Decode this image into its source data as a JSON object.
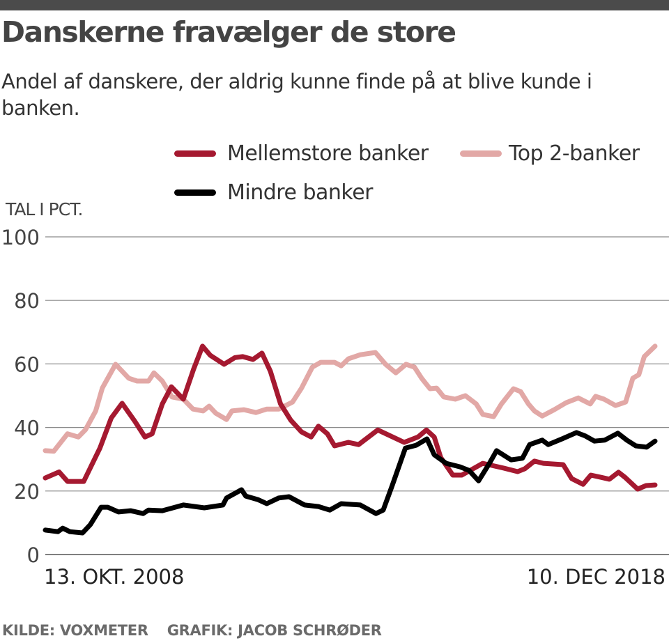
{
  "header": {
    "title": "Danskerne fravælger de store",
    "subtitle": "Andel af danskere, der aldrig kunne finde på at blive kunde i banken."
  },
  "footer": {
    "source": "KILDE: VOXMETER",
    "credit": "GRAFIK: JACOB SCHRØDER"
  },
  "chart_data": {
    "type": "line",
    "title": "Danskerne fravælger de store",
    "subtitle": "Andel af danskere, der aldrig kunne finde på at blive kunde i banken.",
    "ylabel": "TAL I PCT.",
    "xlabel": "",
    "ylim": [
      0,
      100
    ],
    "yticks": [
      "0",
      "20",
      "40",
      "60",
      "80",
      "100"
    ],
    "ytick_values": [
      0,
      20,
      40,
      60,
      80,
      100
    ],
    "xlim": [
      2008.78,
      2018.94
    ],
    "xtick_labels": [
      "13. OKT. 2008",
      "10. DEC 2018"
    ],
    "grid": true,
    "legend_placement": "top",
    "series": [
      {
        "name": "Mellemstore banker",
        "color": "#a51930",
        "x": [
          2008.78,
          2009.01,
          2009.15,
          2009.42,
          2009.69,
          2009.88,
          2010.06,
          2010.27,
          2010.44,
          2010.56,
          2010.73,
          2010.88,
          2011.08,
          2011.25,
          2011.4,
          2011.53,
          2011.76,
          2011.94,
          2012.07,
          2012.24,
          2012.39,
          2012.53,
          2012.7,
          2012.87,
          2013.05,
          2013.21,
          2013.33,
          2013.48,
          2013.6,
          2013.83,
          2014.0,
          2014.32,
          2014.76,
          2014.99,
          2015.13,
          2015.26,
          2015.37,
          2015.57,
          2015.72,
          2016.07,
          2016.42,
          2016.65,
          2016.77,
          2016.93,
          2017.08,
          2017.41,
          2017.55,
          2017.74,
          2017.87,
          2018.04,
          2018.18,
          2018.33,
          2018.44,
          2018.65,
          2018.79,
          2018.94
        ],
        "y": [
          24.1,
          26,
          23,
          23,
          33.5,
          43,
          47.6,
          42,
          37,
          38,
          47.4,
          52.8,
          48.9,
          58.3,
          65.6,
          62.7,
          59.9,
          62,
          62.3,
          61.4,
          63.4,
          57.7,
          47.4,
          42.3,
          38.6,
          37,
          40.4,
          38,
          34.2,
          35.3,
          34.6,
          39.2,
          35.3,
          37,
          39.2,
          37,
          30.5,
          25,
          25,
          28.7,
          27.2,
          26.1,
          27,
          29.4,
          28.7,
          28.3,
          23.9,
          22.1,
          25,
          24.3,
          23.7,
          25.9,
          24.3,
          20.6,
          21.7,
          21.9
        ]
      },
      {
        "name": "Top 2-banker",
        "color": "#e2a8a6",
        "x": [
          2008.78,
          2008.92,
          2009.15,
          2009.33,
          2009.45,
          2009.62,
          2009.73,
          2009.95,
          2010.17,
          2010.31,
          2010.5,
          2010.59,
          2010.73,
          2010.89,
          2011.08,
          2011.24,
          2011.41,
          2011.51,
          2011.62,
          2011.8,
          2011.89,
          2012.09,
          2012.29,
          2012.47,
          2012.67,
          2012.9,
          2013.05,
          2013.23,
          2013.37,
          2013.6,
          2013.71,
          2013.83,
          2014.03,
          2014.28,
          2014.45,
          2014.62,
          2014.79,
          2014.93,
          2015.05,
          2015.19,
          2015.3,
          2015.42,
          2015.61,
          2015.78,
          2015.96,
          2016.07,
          2016.25,
          2016.38,
          2016.58,
          2016.7,
          2016.83,
          2016.93,
          2017.06,
          2017.26,
          2017.46,
          2017.66,
          2017.86,
          2017.95,
          2018.09,
          2018.28,
          2018.45,
          2018.57,
          2018.67,
          2018.76,
          2018.94
        ],
        "y": [
          32.7,
          32.5,
          38,
          37,
          39.3,
          45.2,
          52.4,
          59.9,
          55.5,
          54.6,
          54.6,
          57.2,
          54.6,
          49.6,
          48.9,
          45.8,
          45.2,
          46.7,
          44.5,
          42.5,
          45.2,
          45.6,
          44.7,
          45.8,
          45.8,
          48,
          52.4,
          59,
          60.5,
          60.5,
          59.4,
          61.6,
          62.9,
          63.6,
          59.9,
          57.2,
          59.9,
          59,
          55.5,
          52.2,
          52.4,
          49.6,
          48.9,
          50,
          47.4,
          44.1,
          43.4,
          47.4,
          52.2,
          51.3,
          47.4,
          45.2,
          43.6,
          45.6,
          47.8,
          49.3,
          47.4,
          49.8,
          48.9,
          46.9,
          48,
          55.5,
          56.6,
          62.3,
          65.6
        ]
      },
      {
        "name": "Mindre banker",
        "color": "#000000",
        "x": [
          2008.78,
          2008.99,
          2009.07,
          2009.19,
          2009.4,
          2009.53,
          2009.71,
          2009.82,
          2010.0,
          2010.2,
          2010.41,
          2010.5,
          2010.73,
          2011.08,
          2011.43,
          2011.74,
          2011.8,
          2012.05,
          2012.12,
          2012.32,
          2012.47,
          2012.67,
          2012.84,
          2013.1,
          2013.33,
          2013.52,
          2013.71,
          2014.03,
          2014.29,
          2014.41,
          2014.56,
          2014.78,
          2014.96,
          2015.14,
          2015.26,
          2015.46,
          2015.69,
          2015.84,
          2016.0,
          2016.18,
          2016.3,
          2016.54,
          2016.73,
          2016.85,
          2017.06,
          2017.16,
          2017.39,
          2017.63,
          2017.78,
          2017.93,
          2018.1,
          2018.32,
          2018.47,
          2018.62,
          2018.8,
          2018.94
        ],
        "y": [
          7.7,
          7.2,
          8.3,
          7.2,
          6.8,
          9.4,
          14.9,
          14.9,
          13.4,
          13.8,
          12.9,
          14,
          13.8,
          15.6,
          14.7,
          15.6,
          17.8,
          20.4,
          18.4,
          17.3,
          16,
          17.8,
          18.2,
          15.6,
          15.1,
          14,
          16,
          15.6,
          12.9,
          14,
          21.7,
          33.5,
          34.4,
          36.4,
          31.4,
          28.7,
          27.6,
          26.5,
          23.2,
          28.7,
          32.7,
          29.8,
          30.3,
          34.6,
          36,
          34.6,
          36.4,
          38.4,
          37.3,
          35.7,
          36,
          38.2,
          36,
          34.2,
          33.8,
          35.7
        ]
      }
    ]
  }
}
